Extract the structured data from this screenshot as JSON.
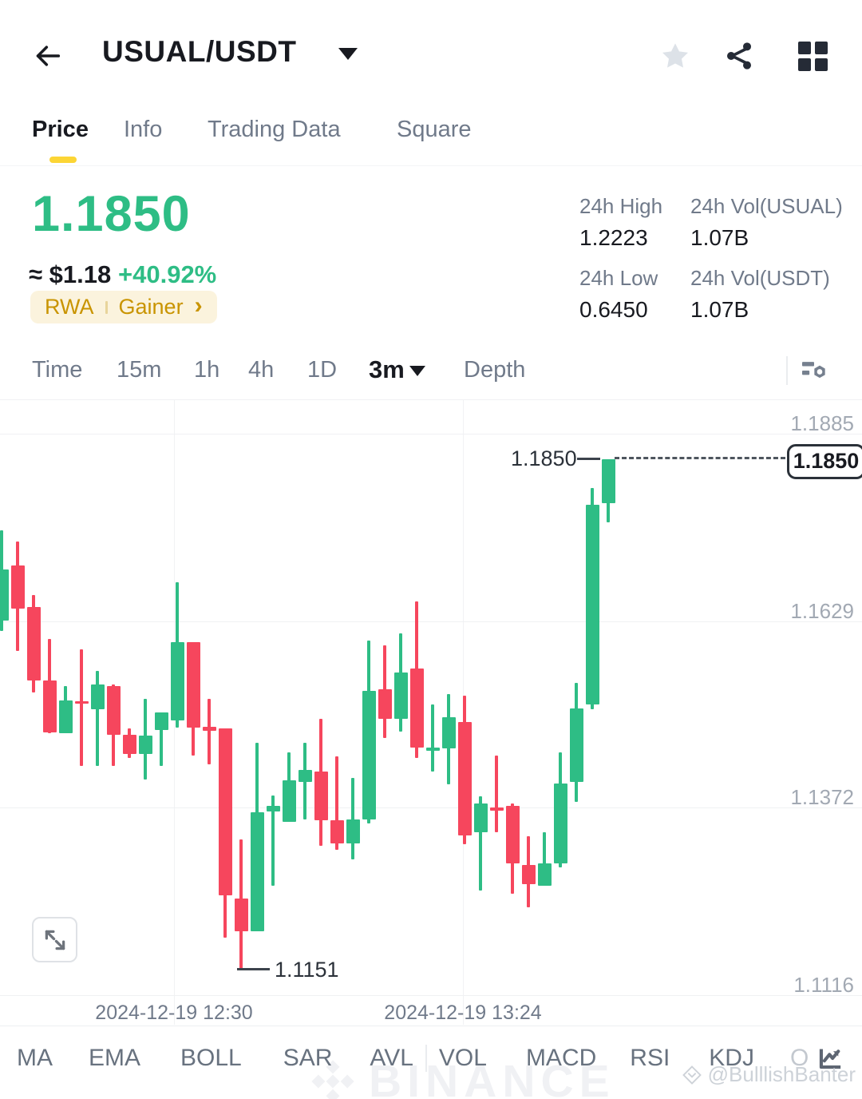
{
  "header": {
    "title": "USUAL/USDT"
  },
  "tabs": {
    "items": [
      {
        "label": "Price",
        "active": true
      },
      {
        "label": "Info",
        "active": false
      },
      {
        "label": "Trading Data",
        "active": false
      },
      {
        "label": "Square",
        "active": false
      }
    ]
  },
  "ticker": {
    "last_price": "1.1850",
    "fiat_value": "≈ $1.18",
    "change_percent": "+40.92%",
    "tag_rwa": "RWA",
    "tag_gainer": "Gainer",
    "tag_chevron": "›"
  },
  "stats": {
    "items": [
      {
        "label": "24h High",
        "value": "1.2223"
      },
      {
        "label": "24h Vol(USUAL)",
        "value": "1.07B"
      },
      {
        "label": "24h Low",
        "value": "0.6450"
      },
      {
        "label": "24h Vol(USDT)",
        "value": "1.07B"
      }
    ]
  },
  "toolbar": {
    "timeframes": [
      "Time",
      "15m",
      "1h",
      "4h",
      "1D"
    ],
    "selected_interval": "3m",
    "depth_label": "Depth"
  },
  "chart_data": {
    "type": "candlestick",
    "symbol": "USUAL/USDT",
    "interval": "3m",
    "y_axis": {
      "tick_labels": [
        "1.1885",
        "1.1629",
        "1.1372",
        "1.1116"
      ],
      "top_price": 1.1885,
      "bottom_price": 1.1116
    },
    "x_axis": {
      "tick_labels": [
        "2024-12-19 12:30",
        "2024-12-19 13:24"
      ]
    },
    "markers": {
      "current_price": "1.1850",
      "current_price_value": 1.185,
      "low_price": "1.1151",
      "low_price_value": 1.1151
    },
    "colors": {
      "up": "#2EBD85",
      "down": "#F6465D"
    },
    "candles_ohlc": [
      [
        1.1629,
        1.1753,
        1.1615,
        1.1699
      ],
      [
        1.1704,
        1.1737,
        1.1588,
        1.1645
      ],
      [
        1.1648,
        1.1664,
        1.1531,
        1.1547
      ],
      [
        1.1547,
        1.1604,
        1.1475,
        1.1476
      ],
      [
        1.1475,
        1.1539,
        1.1475,
        1.152
      ],
      [
        1.1519,
        1.159,
        1.143,
        1.1515
      ],
      [
        1.1508,
        1.156,
        1.143,
        1.1541
      ],
      [
        1.1539,
        1.1542,
        1.143,
        1.1473
      ],
      [
        1.1473,
        1.1481,
        1.1441,
        1.1446
      ],
      [
        1.1446,
        1.1522,
        1.1411,
        1.1471
      ],
      [
        1.1479,
        1.1503,
        1.143,
        1.1503
      ],
      [
        1.1492,
        1.1682,
        1.1482,
        1.1599
      ],
      [
        1.1599,
        1.1599,
        1.1444,
        1.1482
      ],
      [
        1.1484,
        1.1522,
        1.1432,
        1.1478
      ],
      [
        1.1481,
        1.1481,
        1.1195,
        1.1253
      ],
      [
        1.1248,
        1.1329,
        1.1151,
        1.1203
      ],
      [
        1.1203,
        1.1462,
        1.1203,
        1.1367
      ],
      [
        1.1368,
        1.1389,
        1.1266,
        1.1375
      ],
      [
        1.1353,
        1.1448,
        1.1353,
        1.141
      ],
      [
        1.1408,
        1.1462,
        1.1357,
        1.1424
      ],
      [
        1.1422,
        1.1495,
        1.1321,
        1.1356
      ],
      [
        1.1356,
        1.1443,
        1.1315,
        1.1324
      ],
      [
        1.1324,
        1.1413,
        1.1302,
        1.1357
      ],
      [
        1.1357,
        1.1602,
        1.1351,
        1.1533
      ],
      [
        1.1535,
        1.1595,
        1.1468,
        1.1495
      ],
      [
        1.1495,
        1.1612,
        1.1477,
        1.1558
      ],
      [
        1.1563,
        1.1655,
        1.1441,
        1.1455
      ],
      [
        1.1451,
        1.1514,
        1.1422,
        1.1455
      ],
      [
        1.1454,
        1.1528,
        1.1405,
        1.1497
      ],
      [
        1.149,
        1.1526,
        1.1323,
        1.1335
      ],
      [
        1.1339,
        1.1388,
        1.1259,
        1.1379
      ],
      [
        1.1373,
        1.1444,
        1.1339,
        1.1369
      ],
      [
        1.1375,
        1.1379,
        1.1255,
        1.1296
      ],
      [
        1.1294,
        1.1334,
        1.1236,
        1.1268
      ],
      [
        1.1266,
        1.1339,
        1.1266,
        1.1297
      ],
      [
        1.1297,
        1.1448,
        1.1291,
        1.1406
      ],
      [
        1.1408,
        1.1544,
        1.1381,
        1.1509
      ],
      [
        1.1514,
        1.1811,
        1.1508,
        1.1788
      ],
      [
        1.179,
        1.185,
        1.1764,
        1.185
      ]
    ]
  },
  "indicators": {
    "items": [
      "MA",
      "EMA",
      "BOLL",
      "SAR",
      "AVL",
      "VOL",
      "MACD",
      "RSI",
      "KDJ",
      "O"
    ]
  },
  "watermark": {
    "text": "BINANCE",
    "credit": "@BulllishBanter"
  }
}
